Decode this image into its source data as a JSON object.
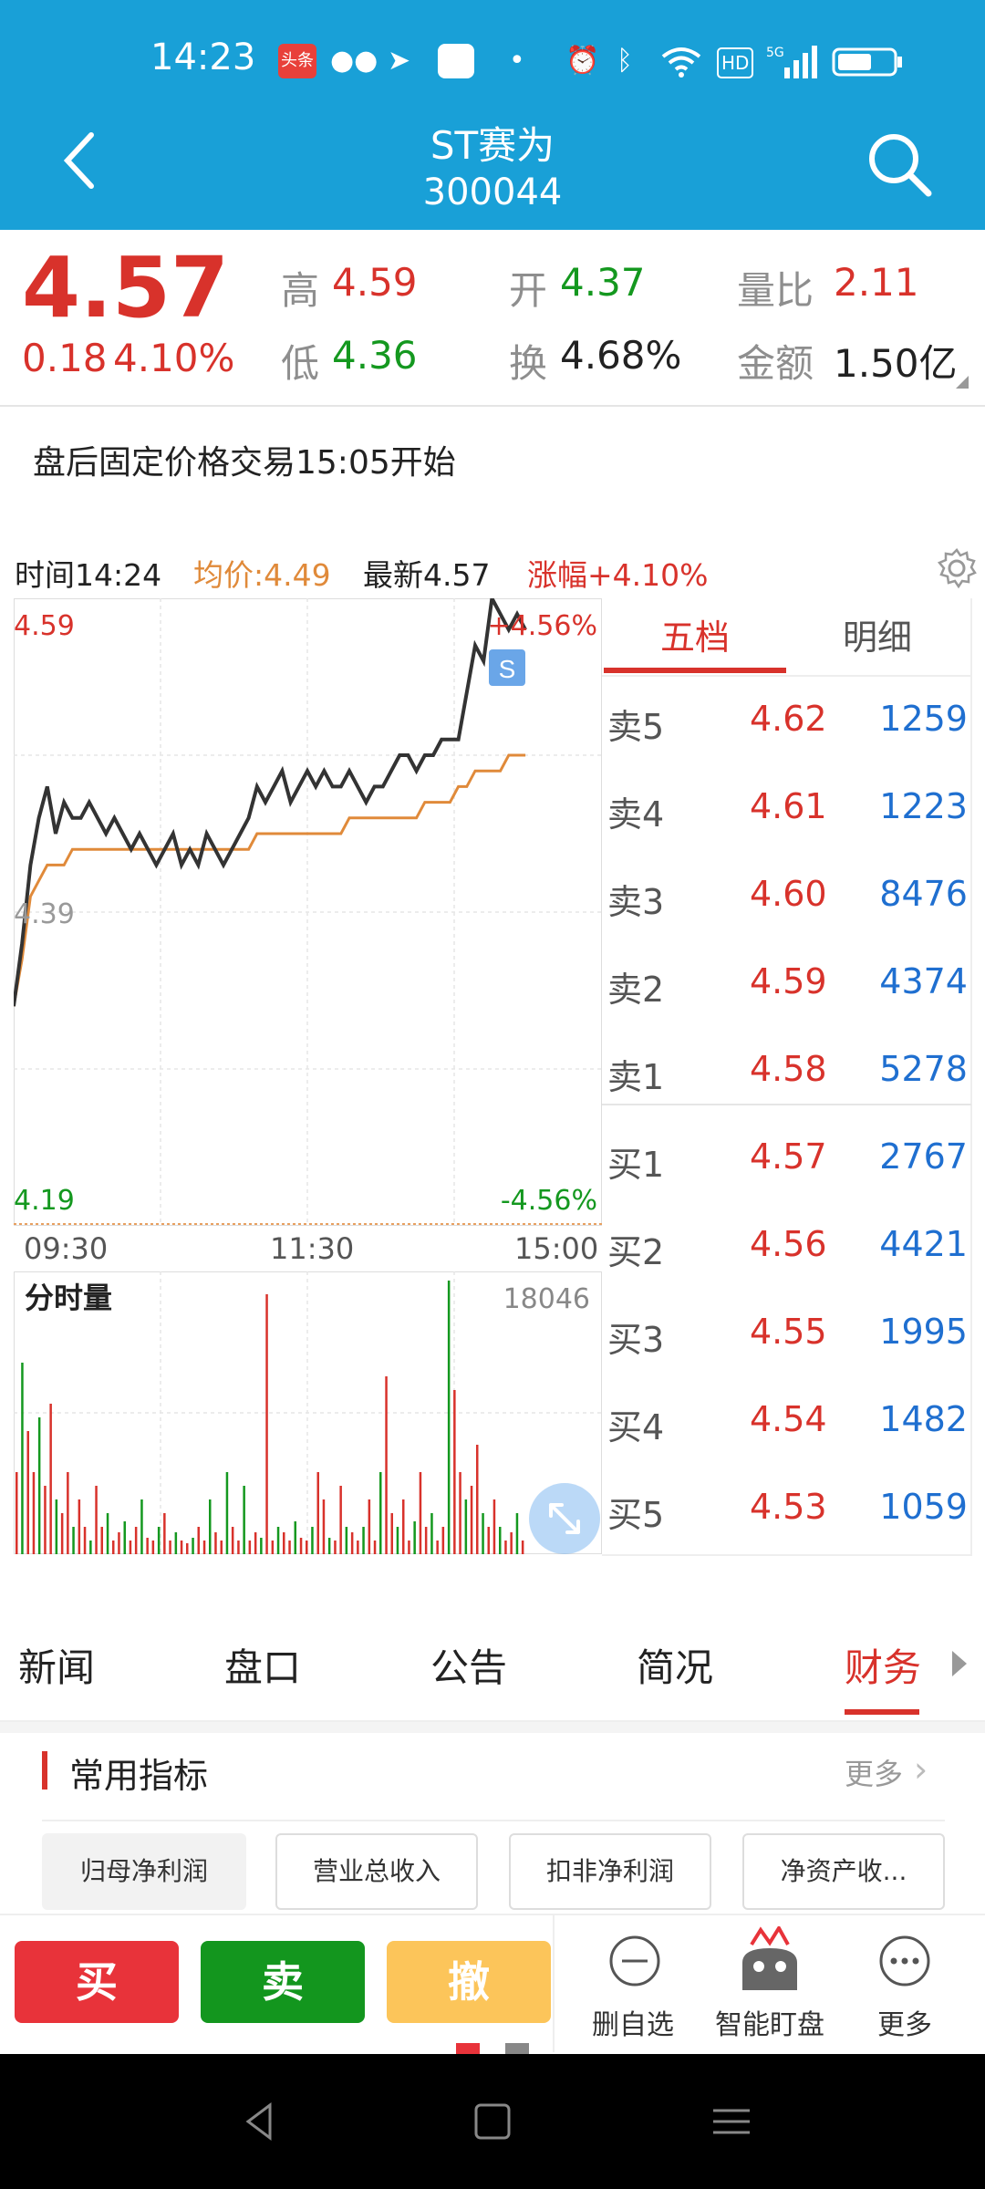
{
  "status": {
    "time": "14:23",
    "app_badge": "头条",
    "net_label": "5G",
    "hd_label": "HD"
  },
  "header": {
    "name": "ST赛为",
    "code": "300044",
    "back_icon": "chevron-left-icon",
    "search_icon": "search-icon"
  },
  "quote": {
    "price": "4.57",
    "change": "0.18",
    "change_pct": "4.10%",
    "high_label": "高",
    "high": "4.59",
    "low_label": "低",
    "low": "4.36",
    "open_label": "开",
    "open": "4.37",
    "turnover_label": "换",
    "turnover": "4.68%",
    "vol_ratio_label": "量比",
    "vol_ratio": "2.11",
    "amount_label": "金额",
    "amount": "1.50亿"
  },
  "notice": "盘后固定价格交易15:05开始",
  "chart_info": {
    "time_label": "时间14:24",
    "avg_label": "均价:4.49",
    "latest_label": "最新4.57",
    "change_label": "涨幅+4.10%"
  },
  "chart_data": {
    "type": "line",
    "x_ticks": [
      "09:30",
      "11:30",
      "15:00"
    ],
    "y_ticks": [
      "4.59",
      "4.39",
      "4.19"
    ],
    "upper_pct": "+4.56%",
    "lower_pct": "-4.56%",
    "ylim": [
      4.19,
      4.59
    ],
    "series": [
      {
        "values": [
          4.33,
          4.37,
          4.42,
          4.45,
          4.47,
          4.44,
          4.46,
          4.45,
          4.45,
          4.46,
          4.45,
          4.44,
          4.45,
          4.44,
          4.43,
          4.44,
          4.43,
          4.42,
          4.43,
          4.44,
          4.42,
          4.43,
          4.42,
          4.44,
          4.43,
          4.42,
          4.43,
          4.44,
          4.45,
          4.47,
          4.46,
          4.47,
          4.48,
          4.46,
          4.47,
          4.48,
          4.47,
          4.48,
          4.47,
          4.47,
          4.48,
          4.47,
          4.46,
          4.47,
          4.47,
          4.48,
          4.49,
          4.49,
          4.48,
          4.49,
          4.49,
          4.5,
          4.5,
          4.5,
          4.53,
          4.56,
          4.55,
          4.59,
          4.58,
          4.57,
          4.58,
          4.57
        ]
      },
      {
        "values": [
          4.33,
          4.36,
          4.4,
          4.41,
          4.42,
          4.42,
          4.42,
          4.43,
          4.43,
          4.43,
          4.43,
          4.43,
          4.43,
          4.43,
          4.43,
          4.43,
          4.43,
          4.43,
          4.43,
          4.43,
          4.43,
          4.43,
          4.43,
          4.43,
          4.43,
          4.43,
          4.43,
          4.43,
          4.43,
          4.44,
          4.44,
          4.44,
          4.44,
          4.44,
          4.44,
          4.44,
          4.44,
          4.44,
          4.44,
          4.44,
          4.45,
          4.45,
          4.45,
          4.45,
          4.45,
          4.45,
          4.45,
          4.45,
          4.45,
          4.46,
          4.46,
          4.46,
          4.46,
          4.47,
          4.47,
          4.48,
          4.48,
          4.48,
          4.48,
          4.49,
          4.49,
          4.49
        ]
      }
    ]
  },
  "volume": {
    "label": "分时量",
    "max": "18046",
    "bars": [
      0.3,
      0.7,
      0.45,
      0.3,
      0.5,
      0.25,
      0.55,
      0.2,
      0.15,
      0.3,
      0.1,
      0.2,
      0.1,
      0.05,
      0.25,
      0.1,
      0.15,
      0.05,
      0.08,
      0.12,
      0.05,
      0.1,
      0.2,
      0.06,
      0.05,
      0.1,
      0.15,
      0.05,
      0.08,
      0.05,
      0.04,
      0.06,
      0.1,
      0.05,
      0.2,
      0.08,
      0.05,
      0.3,
      0.1,
      0.05,
      0.25,
      0.05,
      0.08,
      0.06,
      0.95,
      0.05,
      0.1,
      0.08,
      0.05,
      0.12,
      0.06,
      0.05,
      0.1,
      0.3,
      0.2,
      0.06,
      0.05,
      0.25,
      0.1,
      0.08,
      0.05,
      0.1,
      0.2,
      0.05,
      0.3,
      0.65,
      0.15,
      0.1,
      0.2,
      0.05,
      0.12,
      0.3,
      0.1,
      0.15,
      0.05,
      0.1,
      1.0,
      0.6,
      0.3,
      0.2,
      0.25,
      0.4,
      0.15,
      0.1,
      0.2,
      0.1,
      0.05,
      0.08,
      0.15,
      0.05
    ]
  },
  "orderbook": {
    "tabs": [
      "五档",
      "明细"
    ],
    "sell": [
      {
        "label": "卖5",
        "price": "4.62",
        "vol": "1259"
      },
      {
        "label": "卖4",
        "price": "4.61",
        "vol": "1223"
      },
      {
        "label": "卖3",
        "price": "4.60",
        "vol": "8476"
      },
      {
        "label": "卖2",
        "price": "4.59",
        "vol": "4374"
      },
      {
        "label": "卖1",
        "price": "4.58",
        "vol": "5278"
      }
    ],
    "buy": [
      {
        "label": "买1",
        "price": "4.57",
        "vol": "2767"
      },
      {
        "label": "买2",
        "price": "4.56",
        "vol": "4421"
      },
      {
        "label": "买3",
        "price": "4.55",
        "vol": "1995"
      },
      {
        "label": "买4",
        "price": "4.54",
        "vol": "1482"
      },
      {
        "label": "买5",
        "price": "4.53",
        "vol": "1059"
      }
    ]
  },
  "info_tabs": [
    "新闻",
    "盘口",
    "公告",
    "简况",
    "财务"
  ],
  "indicators": {
    "title": "常用指标",
    "more": "更多",
    "chips": [
      "归母净利润",
      "营业总收入",
      "扣非净利润",
      "净资产收..."
    ]
  },
  "actions": {
    "buy": "买",
    "sell": "卖",
    "cancel": "撤",
    "remove": "删自选",
    "monitor": "智能盯盘",
    "more": "更多"
  },
  "colors": {
    "header_blue": "#19a0d7",
    "up_red": "#d8322b",
    "down_green": "#14981f",
    "avg_orange": "#e08a3a",
    "vol_blue": "#1f6fd0",
    "cancel_yellow": "#fcc55a"
  }
}
